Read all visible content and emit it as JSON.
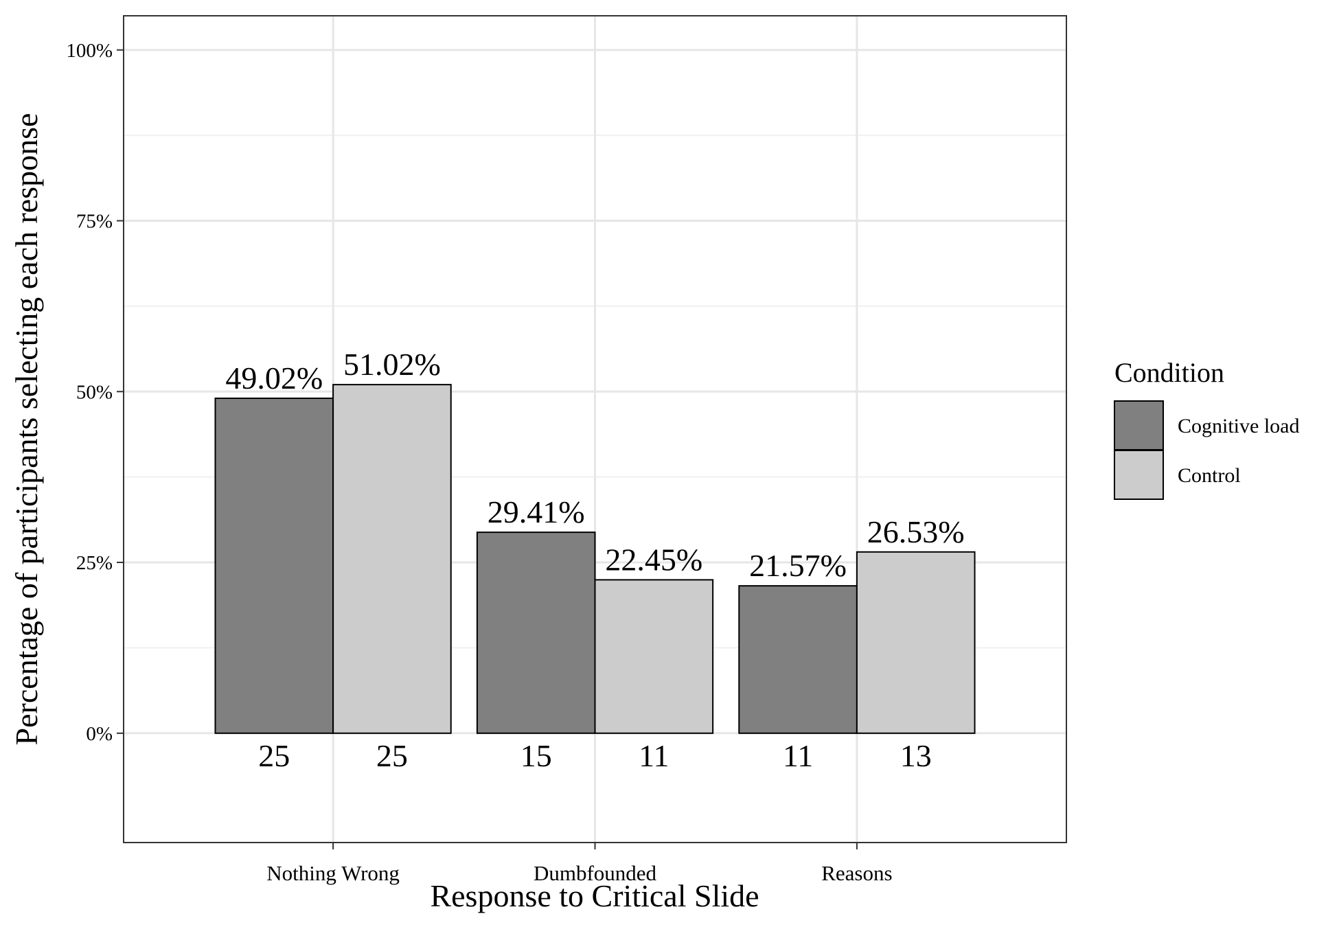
{
  "chart_data": {
    "type": "bar",
    "xlabel": "Response to Critical Slide",
    "ylabel": "Percentage of participants selecting each response",
    "categories": [
      "Nothing Wrong",
      "Dumbfounded",
      "Reasons"
    ],
    "series": [
      {
        "name": "Cognitive load",
        "color": "#808080",
        "values": [
          49.02,
          29.41,
          21.57
        ],
        "value_labels": [
          "49.02%",
          "29.41%",
          "21.57%"
        ],
        "counts": [
          "25",
          "15",
          "11"
        ]
      },
      {
        "name": "Control",
        "color": "#cccccc",
        "values": [
          51.02,
          22.45,
          26.53
        ],
        "value_labels": [
          "51.02%",
          "22.45%",
          "26.53%"
        ],
        "counts": [
          "25",
          "11",
          "13"
        ]
      }
    ],
    "ylim": [
      -16,
      105
    ],
    "yticks": [
      0,
      25,
      50,
      75,
      100
    ],
    "ytick_labels": [
      "0%",
      "25%",
      "50%",
      "75%",
      "100%"
    ],
    "grid": true,
    "legend": {
      "title": "Condition",
      "position": "right"
    }
  }
}
